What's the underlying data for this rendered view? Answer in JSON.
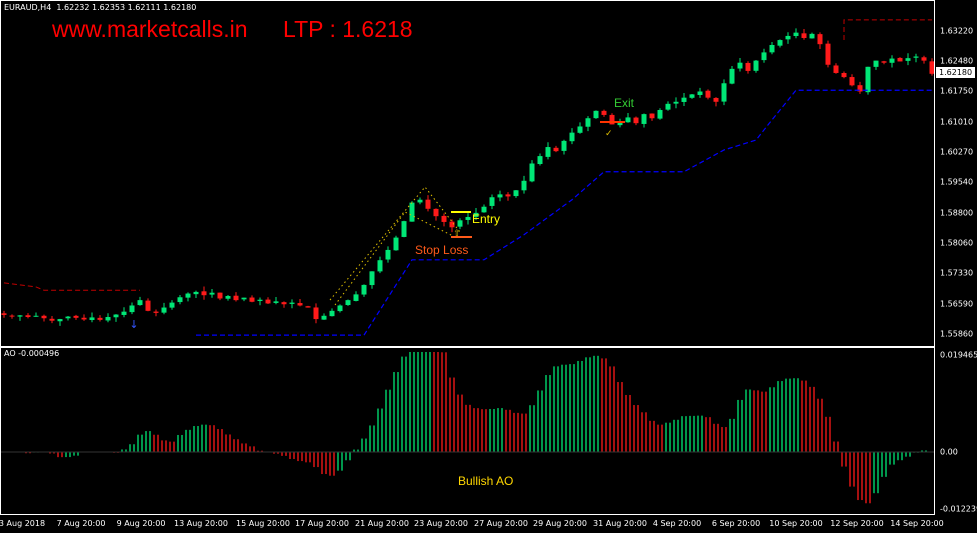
{
  "header": {
    "symbol": "EURAUD,H4",
    "ohlc": "1.62232 1.62353 1.62111 1.62180",
    "website": "www.marketcalls.in",
    "ltp": "LTP : 1.6218"
  },
  "indicator": {
    "label": "AO -0.000496"
  },
  "annotations": {
    "entry": "Entry",
    "stop_loss": "Stop Loss",
    "exit": "Exit",
    "bullish_ao": "Bullish AO"
  },
  "colors": {
    "bull": "#00e676",
    "bear": "#ff1a1a",
    "trail_stop": "#0000ff",
    "red_stop": "#c00000",
    "entry": "#ffff00",
    "stop": "#ff5a1a",
    "exit_text": "#33cc33",
    "brand": "#ff0000"
  },
  "chart_data": {
    "type": "candlestick",
    "symbol": "EURAUD",
    "timeframe": "H4",
    "last_price_label": "1.62180",
    "price_axis_ticks": [
      "1.63220",
      "1.62480",
      "1.61750",
      "1.61010",
      "1.60270",
      "1.59540",
      "1.58800",
      "1.58060",
      "1.57330",
      "1.56590",
      "1.55860"
    ],
    "ao_axis_ticks": [
      "0.019465",
      "0.00",
      "-0.012239"
    ],
    "time_axis_ticks": [
      "3 Aug 2018",
      "7 Aug 20:00",
      "9 Aug 20:00",
      "13 Aug 20:00",
      "15 Aug 20:00",
      "17 Aug 20:00",
      "21 Aug 20:00",
      "23 Aug 20:00",
      "27 Aug 20:00",
      "29 Aug 20:00",
      "31 Aug 20:00",
      "4 Sep 20:00",
      "6 Sep 20:00",
      "10 Sep 20:00",
      "12 Sep 20:00",
      "14 Sep 20:00"
    ],
    "ylim": [
      1.556,
      1.636
    ],
    "ao_ylim": [
      -0.012239,
      0.019465
    ],
    "close": [
      1.5632,
      1.5628,
      1.5631,
      1.5627,
      1.563,
      1.5624,
      1.5618,
      1.5622,
      1.5628,
      1.5625,
      1.5621,
      1.5626,
      1.562,
      1.5627,
      1.5633,
      1.564,
      1.5655,
      1.5668,
      1.5642,
      1.5637,
      1.565,
      1.5662,
      1.5675,
      1.5684,
      1.5688,
      1.568,
      1.5686,
      1.5672,
      1.5678,
      1.5668,
      1.5674,
      1.5664,
      1.5669,
      1.566,
      1.5665,
      1.5658,
      1.5662,
      1.5655,
      1.565,
      1.5622,
      1.563,
      1.5642,
      1.5655,
      1.5668,
      1.5682,
      1.5705,
      1.5738,
      1.5765,
      1.579,
      1.582,
      1.586,
      1.5905,
      1.5912,
      1.589,
      1.5872,
      1.5858,
      1.5845,
      1.5862,
      1.587,
      1.588,
      1.5895,
      1.5918,
      1.5925,
      1.592,
      1.5935,
      1.5958,
      1.6,
      1.6018,
      1.604,
      1.603,
      1.6055,
      1.6075,
      1.609,
      1.611,
      1.6128,
      1.6118,
      1.6095,
      1.61,
      1.6112,
      1.6098,
      1.612,
      1.611,
      1.613,
      1.6145,
      1.615,
      1.616,
      1.6168,
      1.6175,
      1.616,
      1.615,
      1.6195,
      1.623,
      1.6245,
      1.6225,
      1.625,
      1.627,
      1.6288,
      1.63,
      1.631,
      1.6318,
      1.6305,
      1.6315,
      1.629,
      1.624,
      1.622,
      1.621,
      1.619,
      1.6175,
      1.6235,
      1.625,
      1.6245,
      1.6255,
      1.6248,
      1.6256,
      1.626,
      1.625,
      1.6218
    ],
    "trailing_stop_blue": [
      [
        24,
        1.5583
      ],
      [
        45,
        1.5583
      ],
      [
        51,
        1.5766
      ],
      [
        60,
        1.5766
      ],
      [
        65,
        1.5827
      ],
      [
        71,
        1.5912
      ],
      [
        75,
        1.598
      ],
      [
        85,
        1.598
      ],
      [
        90,
        1.6033
      ],
      [
        94,
        1.6057
      ],
      [
        96,
        1.6106
      ],
      [
        99,
        1.6178
      ],
      [
        116,
        1.6178
      ]
    ],
    "trailing_stop_red": [
      [
        [
          0,
          1.571
        ],
        [
          4,
          1.57
        ],
        [
          5,
          1.5692
        ],
        [
          17,
          1.5692
        ]
      ],
      [
        [
          105,
          1.63
        ],
        [
          105,
          1.6349
        ],
        [
          116,
          1.6349
        ]
      ]
    ],
    "trade": {
      "entry": 1.5882,
      "stop_loss": 1.582,
      "exit": 1.61
    }
  }
}
